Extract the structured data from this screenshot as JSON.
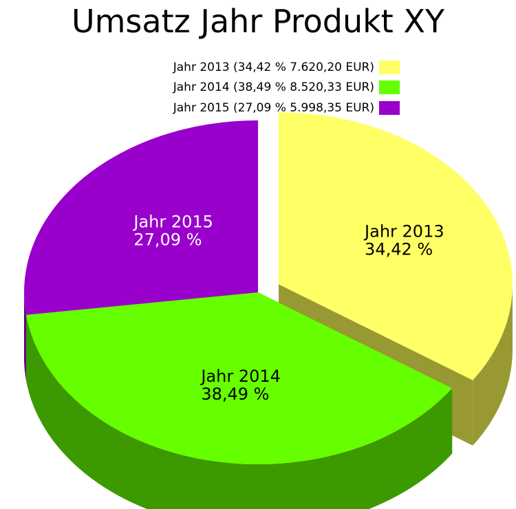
{
  "chart_data": {
    "type": "pie",
    "title": "Umsatz Jahr Produkt XY",
    "slices": [
      {
        "name": "Jahr 2013",
        "value": 7620.2,
        "percent": 34.42,
        "legend_text": "Jahr 2013 (34,42 % 7.620,20 EUR)",
        "label_name": "Jahr 2013",
        "label_percent": "34,42 %",
        "color": "#ffff66",
        "side_color": "#999933",
        "label_color": "#000000",
        "exploded": true
      },
      {
        "name": "Jahr 2014",
        "value": 8520.33,
        "percent": 38.49,
        "legend_text": "Jahr 2014 (38,49 % 8.520,33 EUR)",
        "label_name": "Jahr 2014",
        "label_percent": "38,49 %",
        "color": "#66ff00",
        "side_color": "#3d9900",
        "label_color": "#000000",
        "exploded": false
      },
      {
        "name": "Jahr 2015",
        "value": 5998.35,
        "percent": 27.09,
        "legend_text": "Jahr 2015 (27,09 % 5.998,35 EUR)",
        "label_name": "Jahr 2015",
        "label_percent": "27,09 %",
        "color": "#9900cc",
        "side_color": "#5c007a",
        "label_color": "#ffffff",
        "exploded": false
      }
    ],
    "legend_position": "top-center",
    "style": "3d-pie"
  }
}
